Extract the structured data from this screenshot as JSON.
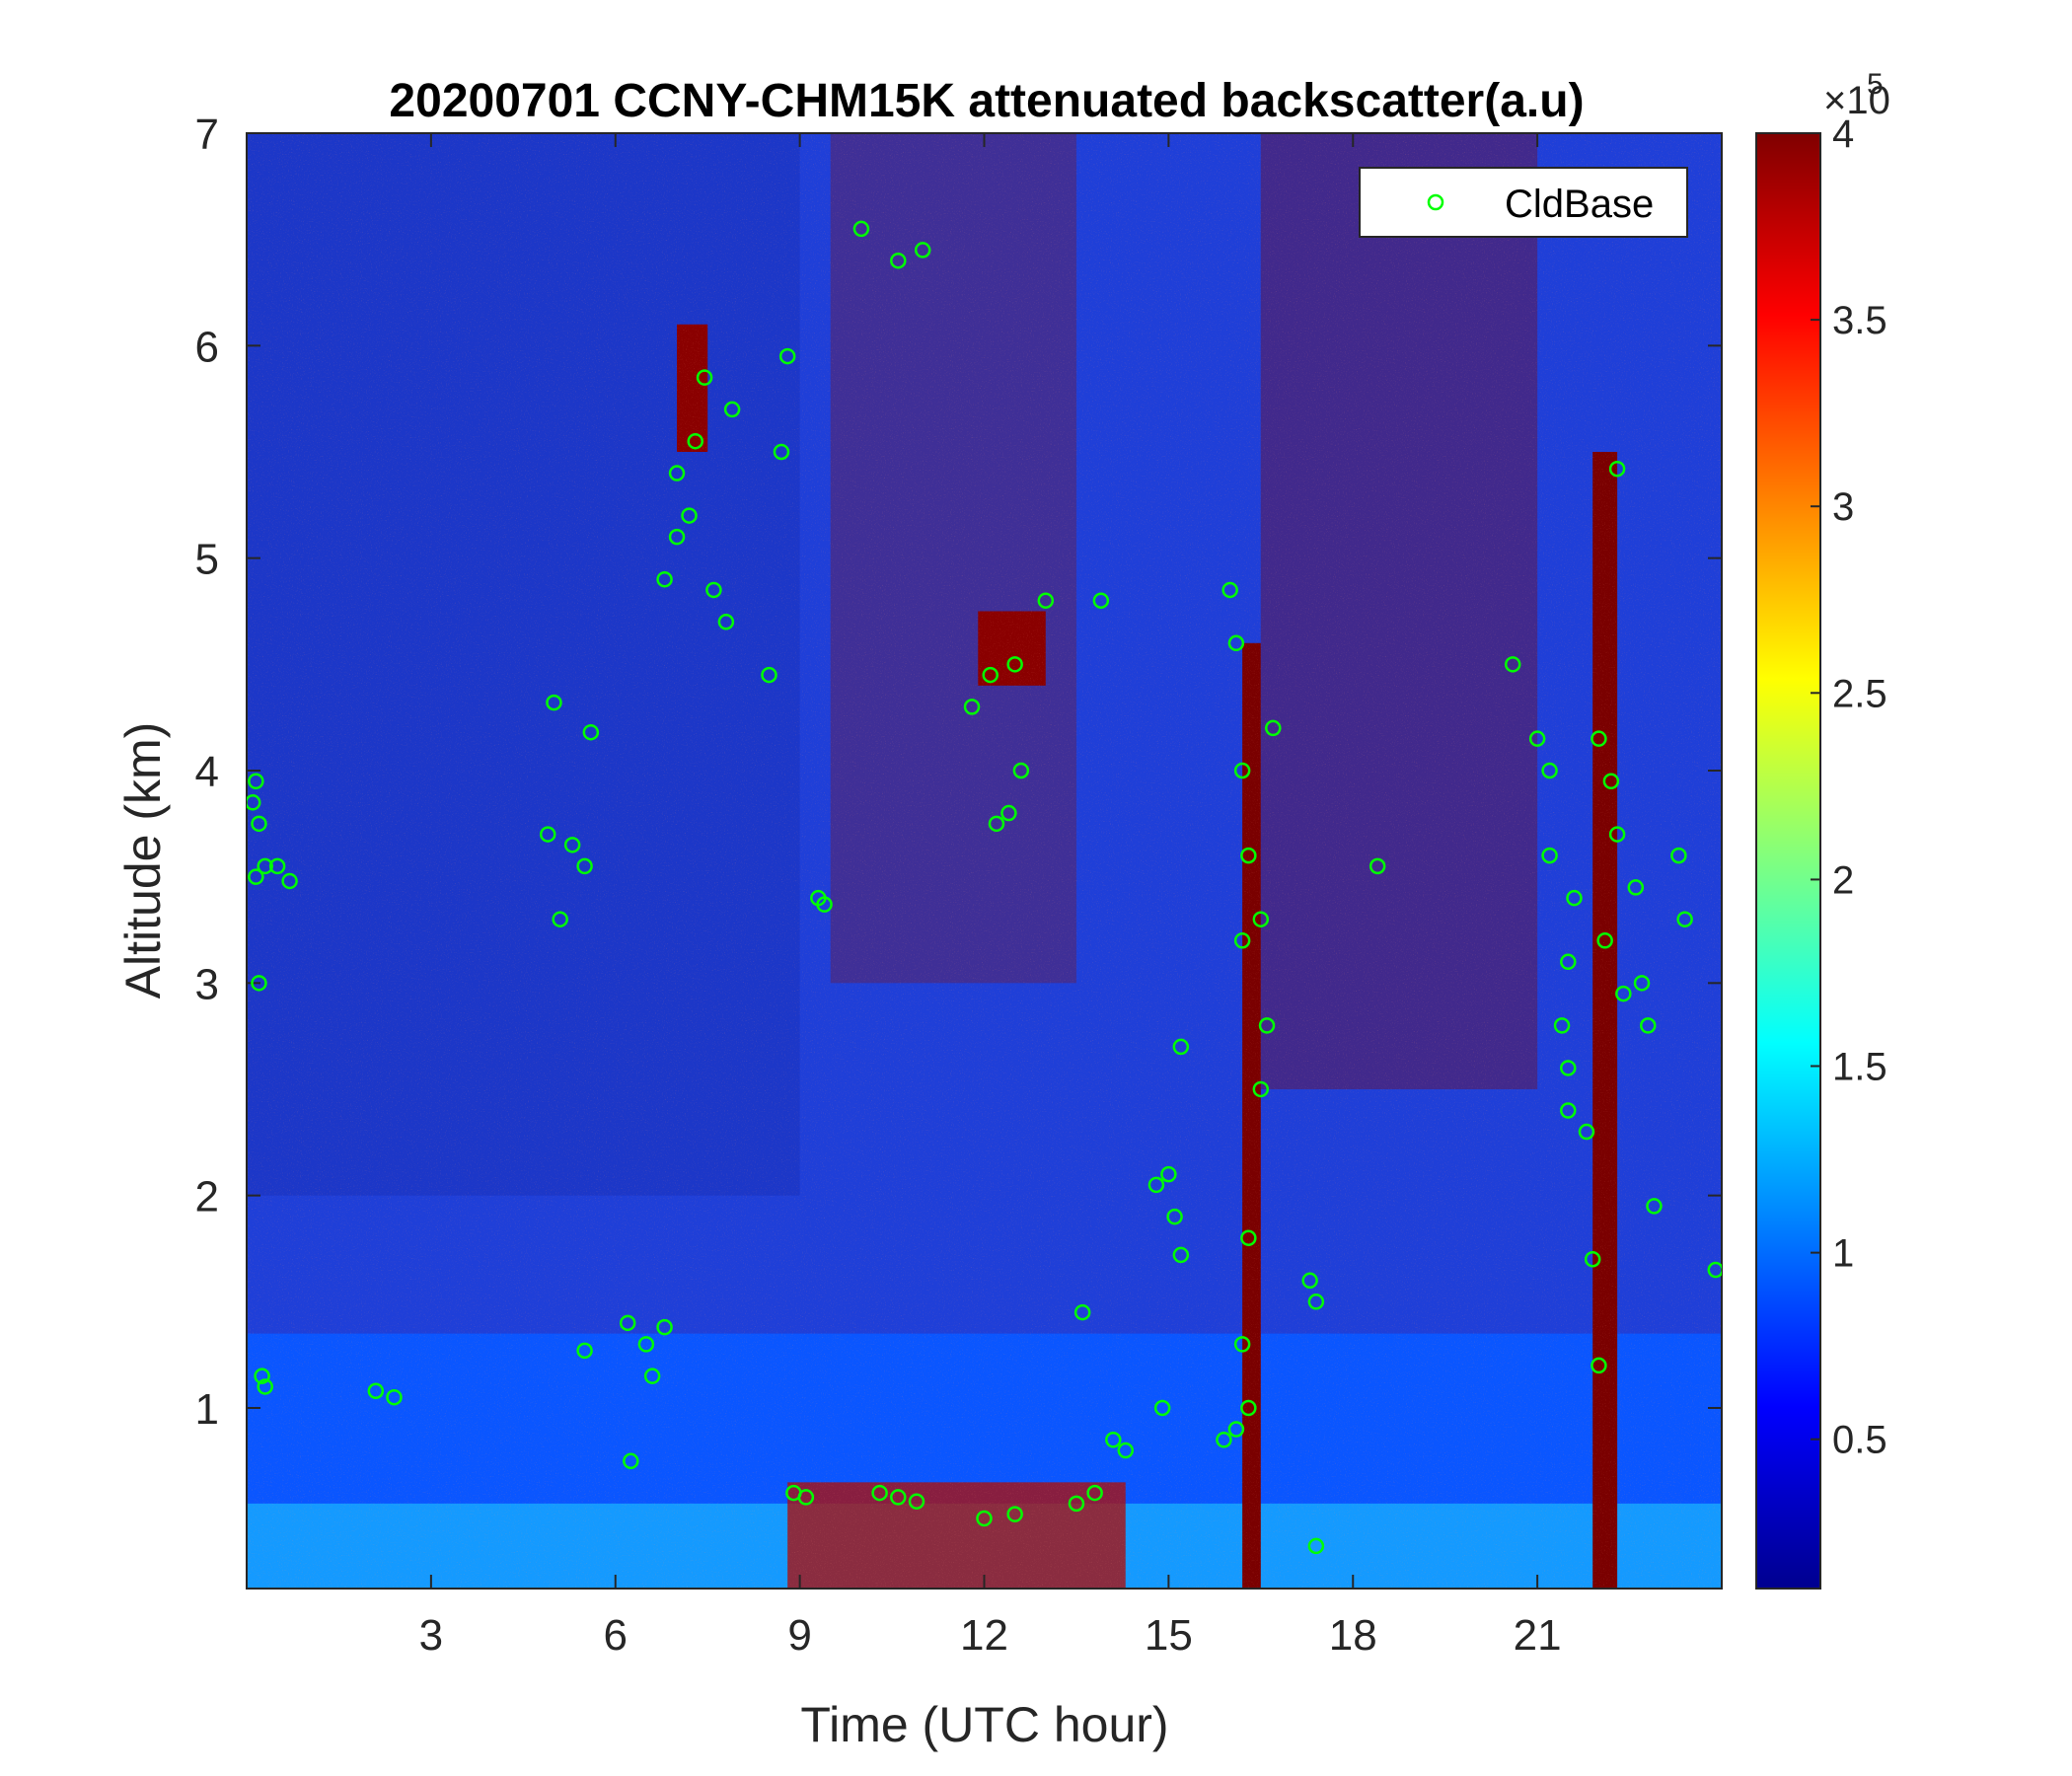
{
  "chart_data": {
    "type": "heatmap",
    "title": "20200701 CCNY-CHM15K attenuated backscatter(a.u)",
    "xlabel": "Time (UTC hour)",
    "ylabel": "Altitude (km)",
    "xlim": [
      0,
      24
    ],
    "ylim": [
      0.15,
      7
    ],
    "x_ticks": [
      3,
      6,
      9,
      12,
      15,
      18,
      21
    ],
    "y_ticks": [
      1,
      2,
      3,
      4,
      5,
      6,
      7
    ],
    "colormap": "jet",
    "colorbar": {
      "range": [
        0.1,
        4
      ],
      "ticks": [
        0.5,
        1,
        1.5,
        2,
        2.5,
        3,
        3.5,
        4
      ],
      "exponent_label": "×10",
      "exponent": "5"
    },
    "legend": {
      "location": "top-right",
      "entries": [
        "CldBase"
      ]
    },
    "series": [
      {
        "name": "CldBase",
        "marker": "circle",
        "color": "#00ff00",
        "points": [
          [
            0.1,
            3.85
          ],
          [
            0.15,
            3.95
          ],
          [
            0.2,
            3.75
          ],
          [
            0.15,
            3.5
          ],
          [
            0.3,
            3.55
          ],
          [
            0.5,
            3.55
          ],
          [
            0.7,
            3.48
          ],
          [
            0.2,
            3.0
          ],
          [
            0.25,
            1.15
          ],
          [
            0.3,
            1.1
          ],
          [
            2.1,
            1.08
          ],
          [
            2.4,
            1.05
          ],
          [
            5.0,
            4.32
          ],
          [
            5.6,
            4.18
          ],
          [
            4.9,
            3.7
          ],
          [
            5.3,
            3.65
          ],
          [
            5.5,
            3.55
          ],
          [
            5.1,
            3.3
          ],
          [
            5.5,
            1.27
          ],
          [
            6.2,
            1.4
          ],
          [
            6.5,
            1.3
          ],
          [
            6.8,
            1.38
          ],
          [
            6.6,
            1.15
          ],
          [
            6.25,
            0.75
          ],
          [
            6.8,
            4.9
          ],
          [
            7.0,
            5.1
          ],
          [
            7.0,
            5.4
          ],
          [
            7.3,
            5.55
          ],
          [
            7.45,
            5.85
          ],
          [
            7.2,
            5.2
          ],
          [
            7.6,
            4.85
          ],
          [
            7.8,
            4.7
          ],
          [
            7.9,
            5.7
          ],
          [
            8.5,
            4.45
          ],
          [
            8.7,
            5.5
          ],
          [
            8.8,
            5.95
          ],
          [
            9.3,
            3.4
          ],
          [
            9.4,
            3.37
          ],
          [
            8.9,
            0.6
          ],
          [
            9.1,
            0.58
          ],
          [
            10.0,
            6.55
          ],
          [
            10.6,
            6.4
          ],
          [
            11.0,
            6.45
          ],
          [
            10.3,
            0.6
          ],
          [
            10.6,
            0.58
          ],
          [
            10.9,
            0.56
          ],
          [
            11.8,
            4.3
          ],
          [
            12.1,
            4.45
          ],
          [
            12.5,
            4.5
          ],
          [
            13.0,
            4.8
          ],
          [
            12.6,
            4.0
          ],
          [
            12.2,
            3.75
          ],
          [
            12.4,
            3.8
          ],
          [
            12.0,
            0.48
          ],
          [
            12.5,
            0.5
          ],
          [
            13.5,
            0.55
          ],
          [
            13.8,
            0.6
          ],
          [
            14.3,
            0.8
          ],
          [
            14.1,
            0.85
          ],
          [
            13.6,
            1.45
          ],
          [
            13.9,
            4.8
          ],
          [
            14.8,
            2.05
          ],
          [
            15.0,
            2.1
          ],
          [
            15.1,
            1.9
          ],
          [
            15.2,
            2.7
          ],
          [
            15.2,
            1.72
          ],
          [
            14.9,
            1.0
          ],
          [
            15.9,
            0.85
          ],
          [
            16.1,
            0.9
          ],
          [
            16.0,
            4.85
          ],
          [
            16.1,
            4.6
          ],
          [
            16.2,
            4.0
          ],
          [
            16.3,
            3.6
          ],
          [
            16.5,
            3.3
          ],
          [
            16.2,
            3.2
          ],
          [
            16.7,
            4.2
          ],
          [
            16.6,
            2.8
          ],
          [
            16.5,
            2.5
          ],
          [
            16.3,
            1.8
          ],
          [
            16.2,
            1.3
          ],
          [
            16.3,
            1.0
          ],
          [
            17.3,
            1.6
          ],
          [
            17.4,
            1.5
          ],
          [
            17.4,
            0.35
          ],
          [
            18.4,
            3.55
          ],
          [
            20.6,
            4.5
          ],
          [
            21.0,
            4.15
          ],
          [
            21.2,
            4.0
          ],
          [
            21.2,
            3.6
          ],
          [
            21.6,
            3.4
          ],
          [
            21.5,
            3.1
          ],
          [
            21.4,
            2.8
          ],
          [
            21.5,
            2.6
          ],
          [
            21.5,
            2.4
          ],
          [
            21.8,
            2.3
          ],
          [
            22.0,
            4.15
          ],
          [
            22.2,
            3.95
          ],
          [
            22.3,
            3.7
          ],
          [
            22.1,
            3.2
          ],
          [
            22.4,
            2.95
          ],
          [
            22.6,
            3.45
          ],
          [
            22.7,
            3.0
          ],
          [
            22.8,
            2.8
          ],
          [
            22.9,
            1.95
          ],
          [
            22.3,
            5.42
          ],
          [
            23.3,
            3.6
          ],
          [
            23.4,
            3.3
          ],
          [
            23.9,
            1.65
          ],
          [
            21.9,
            1.7
          ],
          [
            22.0,
            1.2
          ]
        ]
      }
    ]
  }
}
